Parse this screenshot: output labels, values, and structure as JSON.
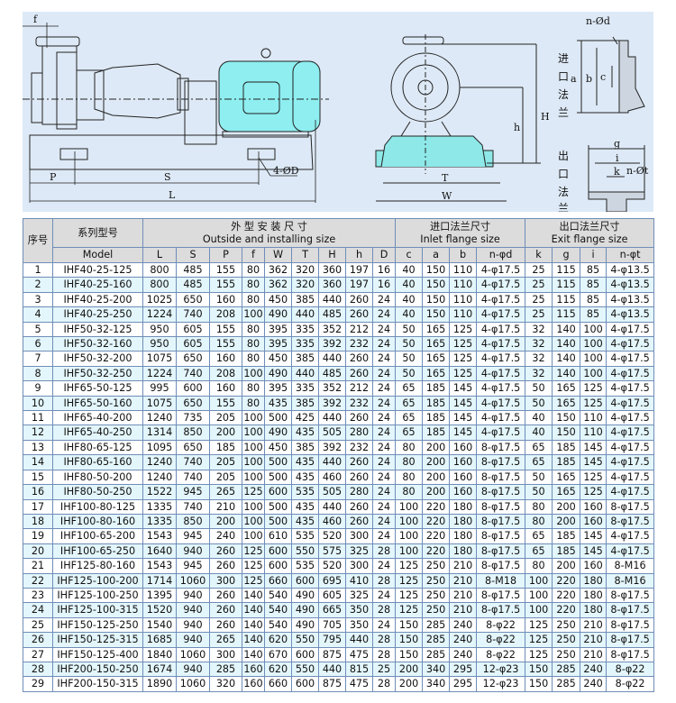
{
  "drawing": {
    "labels": {
      "f": "f",
      "P": "P",
      "S": "S",
      "L": "L",
      "holes": "4-ØD",
      "T": "T",
      "W": "W",
      "H": "H",
      "h": "h",
      "inlet_holes": "n-Ød",
      "a": "a",
      "b": "b",
      "c": "c",
      "g": "g",
      "i": "i",
      "k": "k",
      "outlet_holes": "n-Øt",
      "inlet_flange": [
        "进",
        "口",
        "法",
        "兰"
      ],
      "outlet_flange": [
        "出",
        "口",
        "法",
        "兰"
      ]
    },
    "colors": {
      "background": "#dde9f6",
      "motor": "#8eeef0",
      "base": "#8ee8e8"
    }
  },
  "table": {
    "seq_header": "序号",
    "series_header": "系列型号",
    "model_header": "Model",
    "outside_cn": "外 型 安 装 尺 寸",
    "outside_en": "Outside and installing size",
    "inlet_cn": "进口法兰尺寸",
    "inlet_en": "Inlet flange size",
    "exit_cn": "出口法兰尺寸",
    "exit_en": "Exit flange size",
    "columns": [
      "L",
      "S",
      "P",
      "f",
      "W",
      "T",
      "H",
      "h",
      "D",
      "c",
      "a",
      "b",
      "n-φd",
      "k",
      "g",
      "i",
      "n-φt"
    ],
    "rows": [
      [
        "1",
        "IHF40-25-125",
        "800",
        "485",
        "155",
        "80",
        "362",
        "320",
        "360",
        "197",
        "16",
        "40",
        "150",
        "110",
        "4-φ17.5",
        "25",
        "115",
        "85",
        "4-φ13.5"
      ],
      [
        "2",
        "IHF40-25-160",
        "800",
        "485",
        "155",
        "80",
        "362",
        "320",
        "360",
        "197",
        "16",
        "40",
        "150",
        "110",
        "4-φ17.5",
        "25",
        "115",
        "85",
        "4-φ13.5"
      ],
      [
        "3",
        "IHF40-25-200",
        "1025",
        "650",
        "160",
        "80",
        "450",
        "385",
        "440",
        "260",
        "24",
        "40",
        "150",
        "110",
        "4-φ17.5",
        "25",
        "115",
        "85",
        "4-φ13.5"
      ],
      [
        "4",
        "IHF40-25-250",
        "1224",
        "740",
        "208",
        "100",
        "490",
        "440",
        "485",
        "260",
        "24",
        "40",
        "150",
        "110",
        "4-φ17.5",
        "25",
        "115",
        "85",
        "4-φ13.5"
      ],
      [
        "5",
        "IHF50-32-125",
        "950",
        "605",
        "155",
        "80",
        "395",
        "335",
        "352",
        "212",
        "24",
        "50",
        "165",
        "125",
        "4-φ17.5",
        "32",
        "140",
        "100",
        "4-φ17.5"
      ],
      [
        "6",
        "IHF50-32-160",
        "950",
        "605",
        "155",
        "80",
        "395",
        "335",
        "392",
        "232",
        "24",
        "50",
        "165",
        "125",
        "4-φ17.5",
        "32",
        "140",
        "100",
        "4-φ17.5"
      ],
      [
        "7",
        "IHF50-32-200",
        "1075",
        "650",
        "160",
        "80",
        "450",
        "385",
        "440",
        "260",
        "24",
        "50",
        "165",
        "125",
        "4-φ17.5",
        "32",
        "140",
        "100",
        "4-φ17.5"
      ],
      [
        "8",
        "IHF50-32-250",
        "1224",
        "740",
        "208",
        "100",
        "490",
        "440",
        "485",
        "260",
        "24",
        "50",
        "165",
        "125",
        "4-φ17.5",
        "32",
        "140",
        "100",
        "4-φ17.5"
      ],
      [
        "9",
        "IHF65-50-125",
        "995",
        "600",
        "160",
        "80",
        "395",
        "335",
        "352",
        "212",
        "24",
        "65",
        "185",
        "145",
        "4-φ17.5",
        "50",
        "165",
        "125",
        "4-φ17.5"
      ],
      [
        "10",
        "IHF65-50-160",
        "1075",
        "650",
        "155",
        "80",
        "435",
        "385",
        "392",
        "232",
        "24",
        "65",
        "185",
        "145",
        "4-φ17.5",
        "50",
        "165",
        "125",
        "4-φ17.5"
      ],
      [
        "11",
        "IHF65-40-200",
        "1240",
        "735",
        "205",
        "100",
        "500",
        "425",
        "440",
        "260",
        "24",
        "65",
        "185",
        "145",
        "4-φ17.5",
        "40",
        "150",
        "110",
        "4-φ17.5"
      ],
      [
        "12",
        "IHF65-40-250",
        "1314",
        "850",
        "200",
        "100",
        "490",
        "435",
        "505",
        "280",
        "24",
        "65",
        "185",
        "145",
        "4-φ17.5",
        "40",
        "150",
        "110",
        "4-φ17.5"
      ],
      [
        "13",
        "IHF80-65-125",
        "1095",
        "650",
        "185",
        "100",
        "450",
        "385",
        "392",
        "232",
        "24",
        "80",
        "200",
        "160",
        "8-φ17.5",
        "65",
        "185",
        "145",
        "4-φ17.5"
      ],
      [
        "14",
        "IHF80-65-160",
        "1240",
        "740",
        "205",
        "100",
        "500",
        "435",
        "440",
        "260",
        "24",
        "80",
        "200",
        "160",
        "8-φ17.5",
        "65",
        "185",
        "145",
        "4-φ17.5"
      ],
      [
        "15",
        "IHF80-50-200",
        "1240",
        "740",
        "205",
        "100",
        "500",
        "435",
        "460",
        "260",
        "24",
        "80",
        "200",
        "160",
        "8-φ17.5",
        "50",
        "165",
        "125",
        "4-φ17.5"
      ],
      [
        "16",
        "IHF80-50-250",
        "1522",
        "945",
        "265",
        "125",
        "600",
        "535",
        "505",
        "280",
        "24",
        "80",
        "200",
        "160",
        "8-φ17.5",
        "50",
        "165",
        "125",
        "4-φ17.5"
      ],
      [
        "17",
        "IHF100-80-125",
        "1335",
        "740",
        "210",
        "100",
        "500",
        "435",
        "440",
        "260",
        "24",
        "100",
        "220",
        "180",
        "8-φ17.5",
        "80",
        "200",
        "160",
        "8-φ17.5"
      ],
      [
        "18",
        "IHF100-80-160",
        "1335",
        "850",
        "200",
        "100",
        "500",
        "435",
        "460",
        "260",
        "24",
        "100",
        "220",
        "180",
        "8-φ17.5",
        "80",
        "200",
        "160",
        "8-φ17.5"
      ],
      [
        "19",
        "IHF100-65-200",
        "1543",
        "945",
        "240",
        "100",
        "610",
        "535",
        "520",
        "300",
        "24",
        "100",
        "220",
        "180",
        "8-φ17.5",
        "65",
        "185",
        "145",
        "4-φ17.5"
      ],
      [
        "20",
        "IHF100-65-250",
        "1640",
        "940",
        "260",
        "125",
        "600",
        "550",
        "575",
        "325",
        "28",
        "100",
        "220",
        "180",
        "8-φ17.5",
        "65",
        "185",
        "145",
        "4-φ17.5"
      ],
      [
        "21",
        "IHF125-80-160",
        "1543",
        "945",
        "260",
        "125",
        "600",
        "535",
        "520",
        "300",
        "24",
        "125",
        "250",
        "210",
        "8-φ17.5",
        "80",
        "200",
        "160",
        "8-M16"
      ],
      [
        "22",
        "IHF125-100-200",
        "1714",
        "1060",
        "300",
        "125",
        "660",
        "600",
        "695",
        "410",
        "28",
        "125",
        "250",
        "210",
        "8-M18",
        "100",
        "220",
        "180",
        "8-M16"
      ],
      [
        "23",
        "IHF125-100-250",
        "1395",
        "940",
        "260",
        "140",
        "540",
        "490",
        "605",
        "325",
        "24",
        "125",
        "250",
        "210",
        "8-φ17.5",
        "100",
        "220",
        "180",
        "8-φ17.5"
      ],
      [
        "24",
        "IHF125-100-315",
        "1520",
        "940",
        "260",
        "140",
        "540",
        "490",
        "665",
        "350",
        "28",
        "125",
        "250",
        "210",
        "8-φ17.5",
        "100",
        "220",
        "180",
        "8-φ17.5"
      ],
      [
        "25",
        "IHF150-125-250",
        "1540",
        "940",
        "260",
        "140",
        "540",
        "490",
        "705",
        "350",
        "24",
        "150",
        "285",
        "240",
        "8-φ22",
        "125",
        "250",
        "210",
        "8-φ17.5"
      ],
      [
        "26",
        "IHF150-125-315",
        "1685",
        "940",
        "265",
        "140",
        "620",
        "550",
        "795",
        "440",
        "28",
        "150",
        "285",
        "240",
        "8-φ22",
        "125",
        "250",
        "210",
        "8-φ17.5"
      ],
      [
        "27",
        "IHF150-125-400",
        "1840",
        "1060",
        "300",
        "140",
        "670",
        "600",
        "875",
        "475",
        "28",
        "150",
        "285",
        "240",
        "8-φ22",
        "125",
        "250",
        "210",
        "8-φ17.5"
      ],
      [
        "28",
        "IHF200-150-250",
        "1674",
        "940",
        "285",
        "160",
        "620",
        "550",
        "440",
        "815",
        "25",
        "200",
        "340",
        "295",
        "12-φ23",
        "150",
        "285",
        "240",
        "8-φ22"
      ],
      [
        "29",
        "IHF200-150-315",
        "1890",
        "1060",
        "320",
        "160",
        "660",
        "600",
        "875",
        "475",
        "28",
        "200",
        "340",
        "295",
        "12-φ23",
        "150",
        "285",
        "240",
        "8-φ22"
      ]
    ]
  }
}
